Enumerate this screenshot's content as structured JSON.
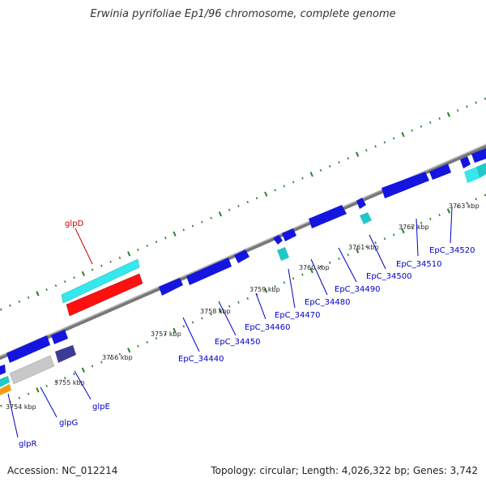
{
  "title": "Erwinia pyrifoliae Ep1/96 chromosome, complete genome",
  "footer": {
    "accession": "Accession: NC_012214",
    "summary": "Topology: circular; Length: 4,026,322 bp; Genes: 3,742"
  },
  "colors": {
    "backbone": "#8a8a8a",
    "tick": "#2e7d32",
    "gene_blue": "#1515e0",
    "gene_cyan": "#35e8ee",
    "gene_red": "#ff1010",
    "gene_teal": "#20c8c8",
    "gene_gray": "#c8c8c8",
    "gene_navy": "#3c3c96",
    "gene_orange": "#f39c12",
    "label_blue": "#0000c8",
    "label_red": "#d00000"
  },
  "scale_labels": [
    "3754 kbp",
    "3755 kbp",
    "3756 kbp",
    "3757 kbp",
    "3758 kbp",
    "3759 kbp",
    "3760 kbp",
    "3761 kbp",
    "3762 kbp",
    "3763 kbp"
  ],
  "gene_labels": [
    "glpR",
    "glpG",
    "glpE",
    "glpD",
    "EpC_34440",
    "EpC_34450",
    "EpC_34460",
    "EpC_34470",
    "EpC_34480",
    "EpC_34490",
    "EpC_34500",
    "EpC_34510",
    "EpC_34520"
  ]
}
